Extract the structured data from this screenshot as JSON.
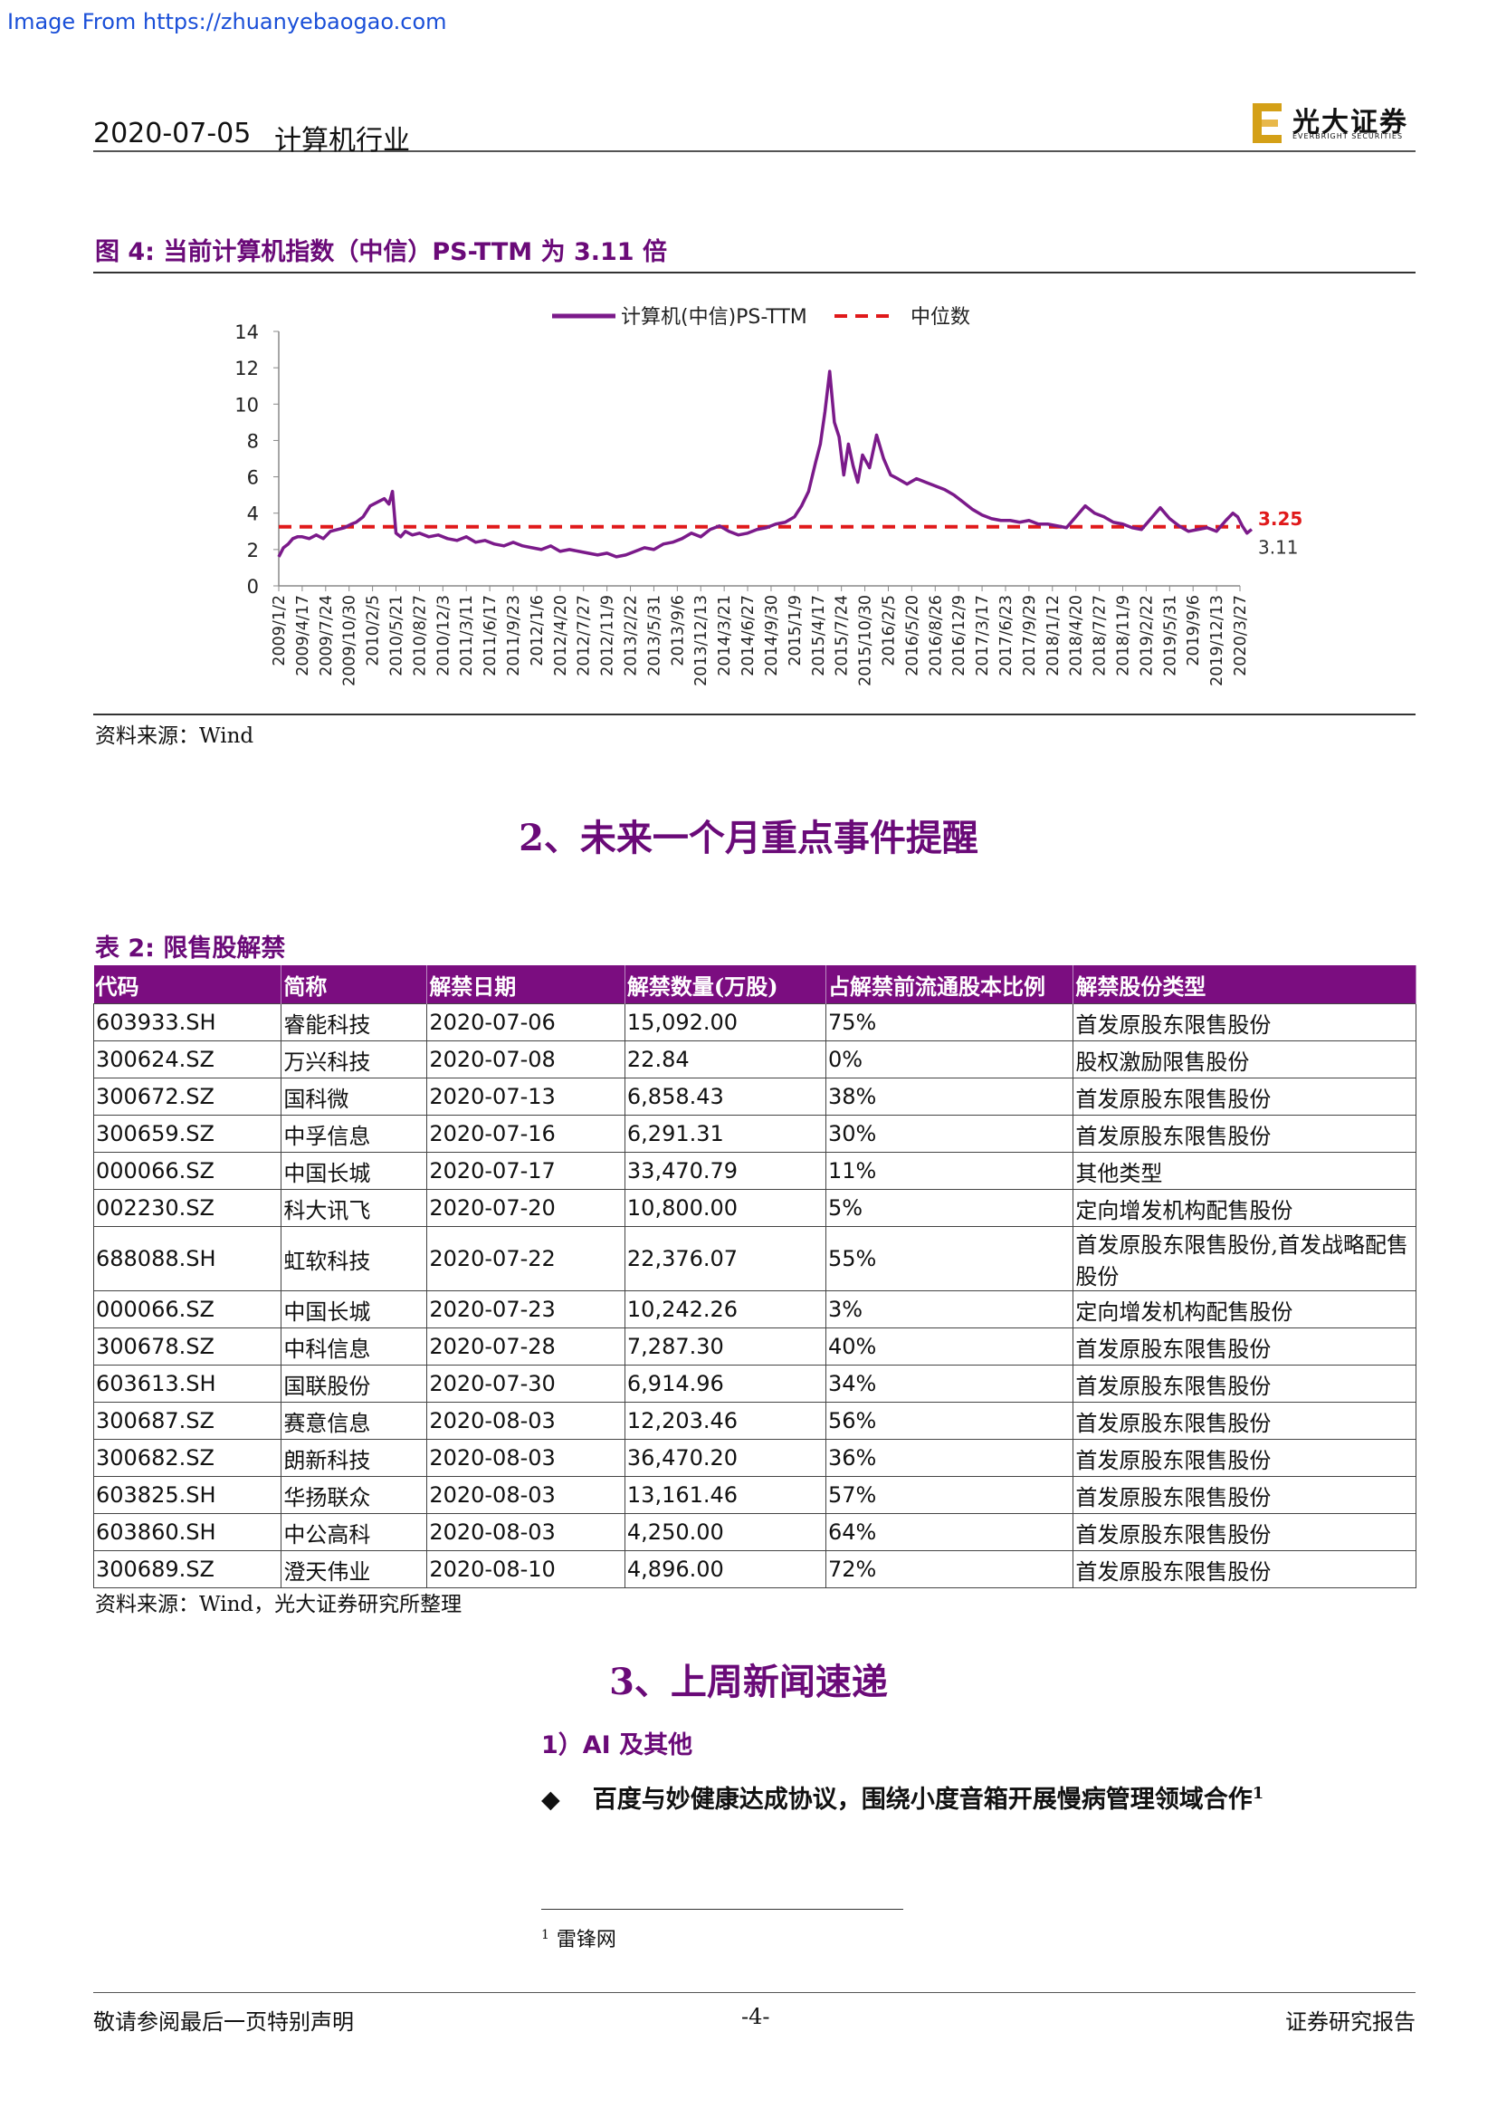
{
  "watermark": "Image From https://zhuanyebaogao.com",
  "header": {
    "date": "2020-07-05",
    "industry": "计算机行业",
    "logo_cn": "光大证券",
    "logo_en": "EVERBRIGHT SECURITIES"
  },
  "colors": {
    "brand": "#7b0d80",
    "series": "#7b1a8a",
    "median": "#e0191a"
  },
  "figure": {
    "title": "图 4:  当前计算机指数（中信）PS-TTM 为 3.11 倍",
    "source": "资料来源：Wind",
    "chart_data": {
      "type": "line",
      "legend": [
        "计算机(中信)PS-TTM",
        "中位数"
      ],
      "legend_position": "top-center",
      "ylim": [
        0,
        14
      ],
      "yticks": [
        0,
        2,
        4,
        6,
        8,
        10,
        12,
        14
      ],
      "median": 3.25,
      "median_label": "3.25",
      "last_value_label": "3.11",
      "x_tick_labels": [
        "2009/1/2",
        "2009/4/17",
        "2009/7/24",
        "2009/10/30",
        "2010/2/5",
        "2010/5/21",
        "2010/8/27",
        "2010/12/3",
        "2011/3/11",
        "2011/6/17",
        "2011/9/23",
        "2012/1/6",
        "2012/4/20",
        "2012/7/27",
        "2012/11/9",
        "2013/2/22",
        "2013/5/31",
        "2013/9/6",
        "2013/12/13",
        "2014/3/21",
        "2014/6/27",
        "2014/9/30",
        "2015/1/9",
        "2015/4/17",
        "2015/7/24",
        "2015/10/30",
        "2016/2/5",
        "2016/5/20",
        "2016/8/26",
        "2016/12/9",
        "2017/3/17",
        "2017/6/23",
        "2017/9/29",
        "2018/1/12",
        "2018/4/20",
        "2018/7/27",
        "2018/11/9",
        "2019/2/22",
        "2019/5/31",
        "2019/9/6",
        "2019/12/13",
        "2020/3/27"
      ],
      "series": [
        {
          "name": "计算机(中信)PS-TTM",
          "points": [
            [
              0,
              1.6
            ],
            [
              0.2,
              2.1
            ],
            [
              0.4,
              2.3
            ],
            [
              0.6,
              2.6
            ],
            [
              0.8,
              2.7
            ],
            [
              1.0,
              2.7
            ],
            [
              1.3,
              2.6
            ],
            [
              1.6,
              2.8
            ],
            [
              1.9,
              2.6
            ],
            [
              2.2,
              3.0
            ],
            [
              2.5,
              3.1
            ],
            [
              2.8,
              3.2
            ],
            [
              3.1,
              3.4
            ],
            [
              3.3,
              3.5
            ],
            [
              3.6,
              3.8
            ],
            [
              3.9,
              4.4
            ],
            [
              4.2,
              4.6
            ],
            [
              4.5,
              4.8
            ],
            [
              4.7,
              4.5
            ],
            [
              4.85,
              5.2
            ],
            [
              5.0,
              2.9
            ],
            [
              5.2,
              2.7
            ],
            [
              5.4,
              3.0
            ],
            [
              5.7,
              2.8
            ],
            [
              6.0,
              2.9
            ],
            [
              6.4,
              2.7
            ],
            [
              6.8,
              2.8
            ],
            [
              7.2,
              2.6
            ],
            [
              7.6,
              2.5
            ],
            [
              8.0,
              2.7
            ],
            [
              8.4,
              2.4
            ],
            [
              8.8,
              2.5
            ],
            [
              9.2,
              2.3
            ],
            [
              9.6,
              2.2
            ],
            [
              10.0,
              2.4
            ],
            [
              10.4,
              2.2
            ],
            [
              10.8,
              2.1
            ],
            [
              11.2,
              2.0
            ],
            [
              11.6,
              2.2
            ],
            [
              12.0,
              1.9
            ],
            [
              12.4,
              2.0
            ],
            [
              12.8,
              1.9
            ],
            [
              13.2,
              1.8
            ],
            [
              13.6,
              1.7
            ],
            [
              14.0,
              1.8
            ],
            [
              14.4,
              1.6
            ],
            [
              14.8,
              1.7
            ],
            [
              15.2,
              1.9
            ],
            [
              15.6,
              2.1
            ],
            [
              16.0,
              2.0
            ],
            [
              16.4,
              2.3
            ],
            [
              16.8,
              2.4
            ],
            [
              17.2,
              2.6
            ],
            [
              17.6,
              2.9
            ],
            [
              18.0,
              2.7
            ],
            [
              18.4,
              3.1
            ],
            [
              18.8,
              3.3
            ],
            [
              19.2,
              3.0
            ],
            [
              19.6,
              2.8
            ],
            [
              20.0,
              2.9
            ],
            [
              20.4,
              3.1
            ],
            [
              20.8,
              3.2
            ],
            [
              21.2,
              3.4
            ],
            [
              21.6,
              3.5
            ],
            [
              22.0,
              3.8
            ],
            [
              22.3,
              4.4
            ],
            [
              22.6,
              5.2
            ],
            [
              22.9,
              6.8
            ],
            [
              23.1,
              7.8
            ],
            [
              23.3,
              9.6
            ],
            [
              23.5,
              11.8
            ],
            [
              23.7,
              9.0
            ],
            [
              23.9,
              8.2
            ],
            [
              24.1,
              6.1
            ],
            [
              24.3,
              7.8
            ],
            [
              24.5,
              6.6
            ],
            [
              24.7,
              5.7
            ],
            [
              24.9,
              7.2
            ],
            [
              25.2,
              6.5
            ],
            [
              25.5,
              8.3
            ],
            [
              25.8,
              7.0
            ],
            [
              26.1,
              6.1
            ],
            [
              26.4,
              5.9
            ],
            [
              26.8,
              5.6
            ],
            [
              27.2,
              5.9
            ],
            [
              27.6,
              5.7
            ],
            [
              28.0,
              5.5
            ],
            [
              28.4,
              5.3
            ],
            [
              28.8,
              5.0
            ],
            [
              29.2,
              4.6
            ],
            [
              29.6,
              4.2
            ],
            [
              30.0,
              3.9
            ],
            [
              30.4,
              3.7
            ],
            [
              30.8,
              3.6
            ],
            [
              31.2,
              3.6
            ],
            [
              31.6,
              3.5
            ],
            [
              32.0,
              3.6
            ],
            [
              32.4,
              3.4
            ],
            [
              32.8,
              3.4
            ],
            [
              33.2,
              3.3
            ],
            [
              33.6,
              3.2
            ],
            [
              34.0,
              3.8
            ],
            [
              34.4,
              4.4
            ],
            [
              34.8,
              4.0
            ],
            [
              35.2,
              3.8
            ],
            [
              35.6,
              3.5
            ],
            [
              36.0,
              3.4
            ],
            [
              36.4,
              3.2
            ],
            [
              36.8,
              3.1
            ],
            [
              37.2,
              3.7
            ],
            [
              37.6,
              4.3
            ],
            [
              38.0,
              3.7
            ],
            [
              38.4,
              3.3
            ],
            [
              38.8,
              3.0
            ],
            [
              39.2,
              3.1
            ],
            [
              39.6,
              3.2
            ],
            [
              40.0,
              3.0
            ],
            [
              40.4,
              3.6
            ],
            [
              40.7,
              4.0
            ],
            [
              40.9,
              3.8
            ],
            [
              41.1,
              3.3
            ],
            [
              41.3,
              2.9
            ],
            [
              41.5,
              3.11
            ]
          ]
        }
      ]
    }
  },
  "section2": {
    "title": "2、未来一个月重点事件提醒"
  },
  "table": {
    "title": "表 2:  限售股解禁",
    "headers": [
      "代码",
      "简称",
      "解禁日期",
      "解禁数量(万股)",
      "占解禁前流通股本比例",
      "解禁股份类型"
    ],
    "rows": [
      [
        "603933.SH",
        "睿能科技",
        "2020-07-06",
        "15,092.00",
        "75%",
        "首发原股东限售股份"
      ],
      [
        "300624.SZ",
        "万兴科技",
        "2020-07-08",
        "22.84",
        "0%",
        "股权激励限售股份"
      ],
      [
        "300672.SZ",
        "国科微",
        "2020-07-13",
        "6,858.43",
        "38%",
        "首发原股东限售股份"
      ],
      [
        "300659.SZ",
        "中孚信息",
        "2020-07-16",
        "6,291.31",
        "30%",
        "首发原股东限售股份"
      ],
      [
        "000066.SZ",
        "中国长城",
        "2020-07-17",
        "33,470.79",
        "11%",
        "其他类型"
      ],
      [
        "002230.SZ",
        "科大讯飞",
        "2020-07-20",
        "10,800.00",
        "5%",
        "定向增发机构配售股份"
      ],
      [
        "688088.SH",
        "虹软科技",
        "2020-07-22",
        "22,376.07",
        "55%",
        "首发原股东限售股份,首发战略配售股份"
      ],
      [
        "000066.SZ",
        "中国长城",
        "2020-07-23",
        "10,242.26",
        "3%",
        "定向增发机构配售股份"
      ],
      [
        "300678.SZ",
        "中科信息",
        "2020-07-28",
        "7,287.30",
        "40%",
        "首发原股东限售股份"
      ],
      [
        "603613.SH",
        "国联股份",
        "2020-07-30",
        "6,914.96",
        "34%",
        "首发原股东限售股份"
      ],
      [
        "300687.SZ",
        "赛意信息",
        "2020-08-03",
        "12,203.46",
        "56%",
        "首发原股东限售股份"
      ],
      [
        "300682.SZ",
        "朗新科技",
        "2020-08-03",
        "36,470.20",
        "36%",
        "首发原股东限售股份"
      ],
      [
        "603825.SH",
        "华扬联众",
        "2020-08-03",
        "13,161.46",
        "57%",
        "首发原股东限售股份"
      ],
      [
        "603860.SH",
        "中公高科",
        "2020-08-03",
        "4,250.00",
        "64%",
        "首发原股东限售股份"
      ],
      [
        "300689.SZ",
        "澄天伟业",
        "2020-08-10",
        "4,896.00",
        "72%",
        "首发原股东限售股份"
      ]
    ],
    "source": "资料来源：Wind，光大证券研究所整理"
  },
  "section3": {
    "title": "3、上周新闻速递",
    "subhead": "1）AI 及其他",
    "bullet_symbol": "◆",
    "bullet": "百度与妙健康达成协议，围绕小度音箱开展慢病管理领域合作",
    "footnote_mark": "1",
    "footnote_text": "雷锋网"
  },
  "footer": {
    "left": "敬请参阅最后一页特别声明",
    "center": "-4-",
    "right": "证券研究报告"
  }
}
